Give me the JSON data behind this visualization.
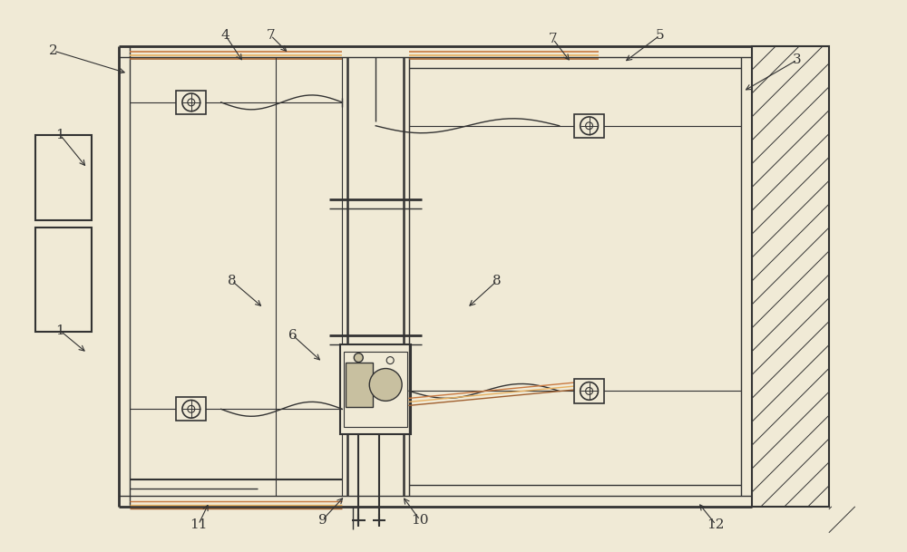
{
  "bg_color": "#f0ead6",
  "line_color": "#333333",
  "wall_color": "#e0d8c0",
  "label_fs": 11,
  "annotation_lw": 0.8
}
